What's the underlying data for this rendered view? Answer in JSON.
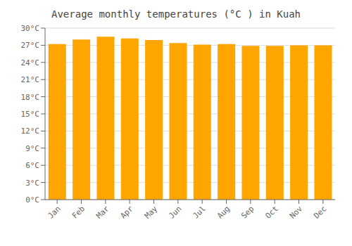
{
  "chart_data": {
    "type": "bar",
    "title": "Average monthly temperatures (°C ) in Kuah",
    "categories": [
      "Jan",
      "Feb",
      "Mar",
      "Apr",
      "May",
      "Jun",
      "Jul",
      "Aug",
      "Sep",
      "Oct",
      "Nov",
      "Dec"
    ],
    "values": [
      27.2,
      28.0,
      28.5,
      28.2,
      27.9,
      27.4,
      27.1,
      27.2,
      26.9,
      26.9,
      27.0,
      27.0
    ],
    "color": "#FFA500",
    "ylim": [
      0,
      30
    ],
    "yticks": [
      {
        "value": 0,
        "label": "0°C"
      },
      {
        "value": 3,
        "label": "3°C"
      },
      {
        "value": 6,
        "label": "6°C"
      },
      {
        "value": 9,
        "label": "9°C"
      },
      {
        "value": 12,
        "label": "12°C"
      },
      {
        "value": 15,
        "label": "15°C"
      },
      {
        "value": 18,
        "label": "18°C"
      },
      {
        "value": 21,
        "label": "21°C"
      },
      {
        "value": 24,
        "label": "24°C"
      },
      {
        "value": 27,
        "label": "27°C"
      },
      {
        "value": 30,
        "label": "30°C"
      }
    ],
    "grid": true
  }
}
